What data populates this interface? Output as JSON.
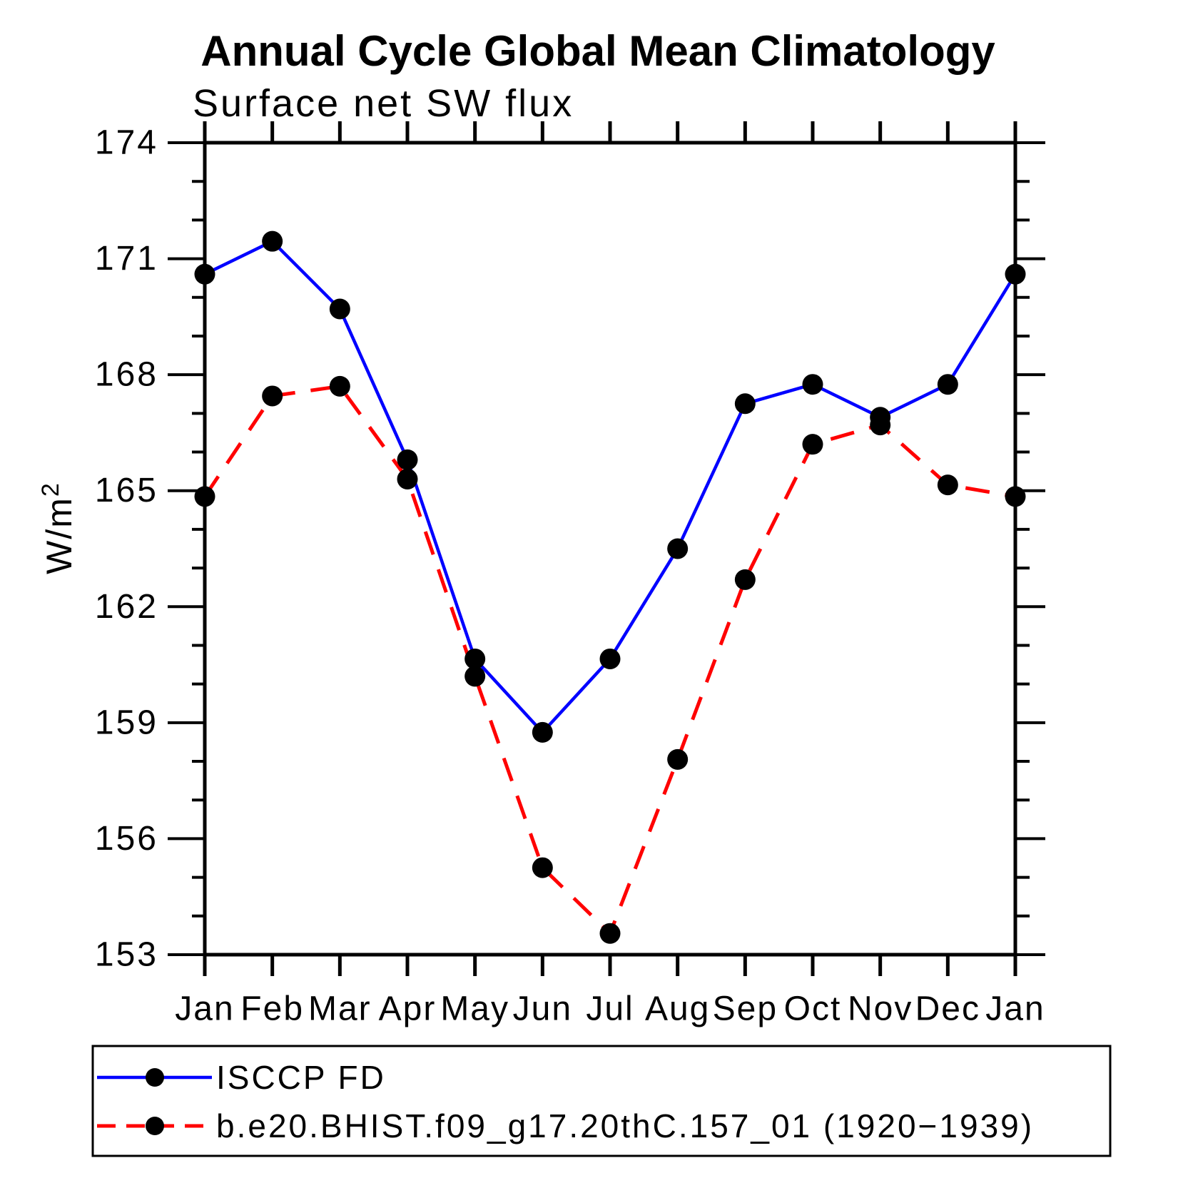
{
  "page": {
    "background": "#ffffff"
  },
  "chart_data": {
    "type": "line",
    "title": "Annual Cycle Global Mean Climatology",
    "subtitle": "Surface net SW flux",
    "ylabel": "W/m²",
    "ylabel_base": "W/m",
    "ylabel_exponent": "2",
    "categories": [
      "Jan",
      "Feb",
      "Mar",
      "Apr",
      "May",
      "Jun",
      "Jul",
      "Aug",
      "Sep",
      "Oct",
      "Nov",
      "Dec",
      "Jan"
    ],
    "ylim": [
      153,
      174
    ],
    "ytick_major_step": 3,
    "ytick_minor_step": 1,
    "yticks_labeled": [
      "153",
      "156",
      "159",
      "162",
      "165",
      "168",
      "171",
      "174"
    ],
    "grid": false,
    "legend_position": "bottom-left",
    "axis_color": "#000000",
    "marker_color": "#000000",
    "series": [
      {
        "name": "ISCCP FD",
        "color": "#0000ff",
        "line_style": "solid",
        "marker": "circle",
        "values": [
          170.6,
          171.45,
          169.7,
          165.8,
          160.65,
          158.75,
          160.65,
          163.5,
          167.25,
          167.75,
          166.9,
          167.75,
          170.6
        ]
      },
      {
        "name": "b.e20.BHIST.f09_g17.20thC.157_01 (1920−1939)",
        "color": "#ff0000",
        "line_style": "dashed",
        "marker": "circle",
        "values": [
          164.85,
          167.45,
          167.7,
          165.3,
          160.2,
          155.25,
          153.55,
          158.05,
          162.7,
          166.2,
          166.7,
          165.15,
          164.85
        ]
      }
    ]
  }
}
